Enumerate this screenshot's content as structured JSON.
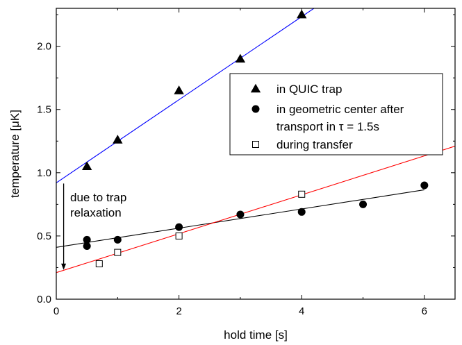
{
  "chart_data": {
    "type": "scatter",
    "xlabel": "hold time [s]",
    "ylabel": "temperature [μK]",
    "xlim": [
      0,
      6.5
    ],
    "ylim": [
      0,
      2.3
    ],
    "xticks": [
      0,
      2,
      4,
      6
    ],
    "yticks": [
      0.0,
      0.5,
      1.0,
      1.5,
      2.0
    ],
    "xtick_labels": [
      "0",
      "2",
      "4",
      "6"
    ],
    "ytick_labels": [
      "0.0",
      "0.5",
      "1.0",
      "1.5",
      "2.0"
    ],
    "grid": false,
    "legend_position": "right",
    "series": [
      {
        "name": "in QUIC trap",
        "marker": "filled-triangle",
        "x": [
          0.5,
          1,
          2,
          3,
          4
        ],
        "y": [
          1.05,
          1.26,
          1.65,
          1.9,
          2.25
        ]
      },
      {
        "name": "in geometric center after transport in τ = 1.5s",
        "name_lines": [
          "in geometric center after",
          "transport in τ = 1.5s"
        ],
        "marker": "filled-circle",
        "x": [
          0.5,
          0.5,
          1,
          2,
          3,
          4,
          5,
          6
        ],
        "y": [
          0.47,
          0.42,
          0.47,
          0.57,
          0.67,
          0.69,
          0.75,
          0.9
        ]
      },
      {
        "name": "during transfer",
        "marker": "open-square",
        "x": [
          0.7,
          1,
          2,
          4
        ],
        "y": [
          0.28,
          0.37,
          0.5,
          0.83
        ]
      }
    ],
    "fit_lines": [
      {
        "color": "#0000ff",
        "x": [
          0,
          4.2
        ],
        "y": [
          0.92,
          2.3
        ]
      },
      {
        "color": "#000000",
        "x": [
          0,
          6
        ],
        "y": [
          0.41,
          0.865
        ]
      },
      {
        "color": "#ff0000",
        "x": [
          0,
          6.5
        ],
        "y": [
          0.21,
          1.21
        ]
      }
    ],
    "annotation": {
      "lines": [
        "due to trap",
        "relaxation"
      ],
      "arrow_x": 0.12,
      "arrow_from_y": 0.92,
      "arrow_to_y": 0.21
    }
  }
}
